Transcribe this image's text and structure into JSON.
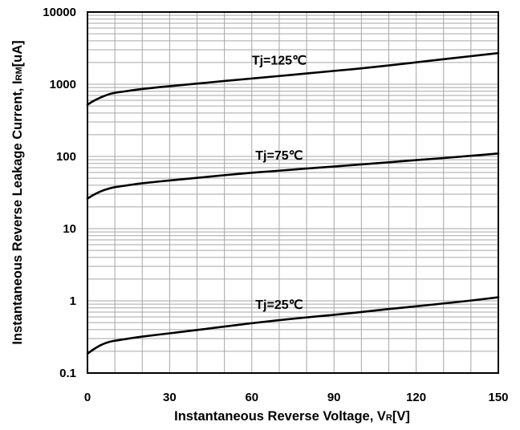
{
  "chart_data": {
    "type": "line",
    "xlabel": "Instantaneous Reverse Voltage, VR[V]",
    "ylabel": "Instantaneous Reverse Leakage Current, IRM[uA]",
    "xlabel_parts": {
      "main": "Instantaneous Reverse Voltage, V",
      "sub": "R",
      "unit": "[V]"
    },
    "ylabel_parts": {
      "main": "Instantaneous Reverse Leakage Current, I",
      "sub": "RM",
      "unit": "[uA]"
    },
    "xlim": [
      0,
      150
    ],
    "ylim": [
      0.1,
      10000
    ],
    "yscale": "log",
    "x_ticks": [
      "0",
      "30",
      "60",
      "90",
      "120",
      "150"
    ],
    "y_ticks": [
      "0.1",
      "1",
      "10",
      "100",
      "1000",
      "10000"
    ],
    "grid": true,
    "series": [
      {
        "name": "Tj=125℃",
        "x": [
          0,
          2,
          5,
          8,
          10,
          15,
          20,
          30,
          40,
          50,
          60,
          70,
          80,
          90,
          100,
          110,
          120,
          130,
          140,
          150
        ],
        "y": [
          520,
          580,
          660,
          730,
          760,
          810,
          860,
          940,
          1020,
          1110,
          1200,
          1300,
          1410,
          1530,
          1660,
          1820,
          2010,
          2220,
          2450,
          2700
        ]
      },
      {
        "name": "Tj=75℃",
        "x": [
          0,
          2,
          5,
          8,
          10,
          15,
          20,
          30,
          40,
          50,
          60,
          70,
          80,
          90,
          100,
          110,
          120,
          130,
          140,
          150
        ],
        "y": [
          26,
          29,
          33,
          36,
          37.5,
          40,
          42.5,
          46.5,
          50.5,
          55,
          59.5,
          63.5,
          68,
          72.5,
          77.5,
          83,
          89,
          95,
          102,
          110
        ]
      },
      {
        "name": "Tj=25℃",
        "x": [
          0,
          2,
          5,
          8,
          10,
          15,
          20,
          30,
          40,
          50,
          60,
          70,
          80,
          90,
          100,
          110,
          120,
          130,
          140,
          150
        ],
        "y": [
          0.185,
          0.21,
          0.245,
          0.27,
          0.28,
          0.3,
          0.32,
          0.355,
          0.395,
          0.44,
          0.49,
          0.54,
          0.59,
          0.64,
          0.7,
          0.77,
          0.84,
          0.92,
          1.01,
          1.12
        ]
      }
    ],
    "colors": {
      "line": "#000000",
      "grid": "#a6a6a6",
      "frame": "#000000"
    }
  }
}
